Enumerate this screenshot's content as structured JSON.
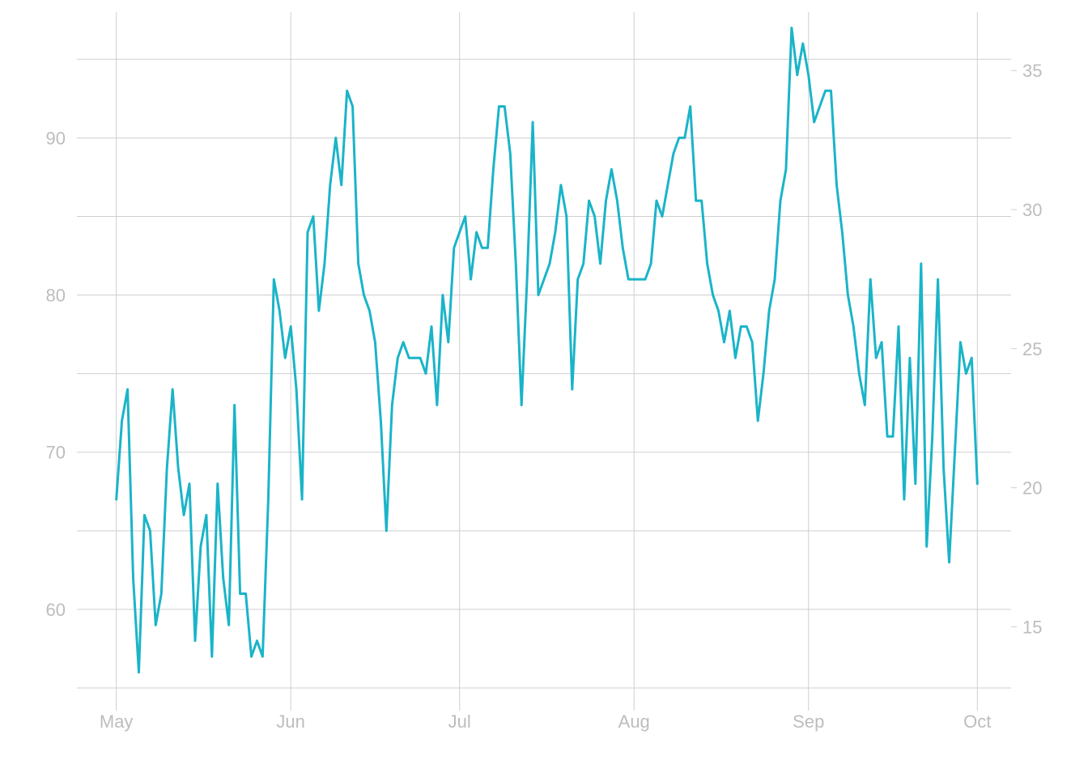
{
  "chart_data": {
    "type": "line",
    "title": "",
    "xlabel": "",
    "ylabel": "",
    "y2label": "",
    "x_ticks": [
      "May",
      "Jun",
      "Jul",
      "Aug",
      "Sep",
      "Oct"
    ],
    "x_tick_dates": [
      "2023-05-01",
      "2023-06-01",
      "2023-07-01",
      "2023-08-01",
      "2023-09-01",
      "2023-10-01"
    ],
    "xlim": [
      "2023-04-24",
      "2023-10-07"
    ],
    "ylim_left": [
      55,
      98
    ],
    "y_ticks_left": [
      60,
      70,
      80,
      90
    ],
    "ylim_right": [
      12.8,
      37.1
    ],
    "y_ticks_right": [
      15,
      20,
      25,
      30,
      35
    ],
    "grid": true,
    "line_color": "#1ab4c8",
    "series": [
      {
        "axis": "left",
        "x_start": "2023-05-01",
        "step": "1 day",
        "values": [
          67,
          72,
          74,
          62,
          56,
          66,
          65,
          59,
          61,
          69,
          74,
          69,
          66,
          68,
          58,
          64,
          66,
          57,
          68,
          62,
          59,
          73,
          61,
          61,
          57,
          58,
          57,
          67,
          81,
          79,
          76,
          78,
          74,
          67,
          84,
          85,
          79,
          82,
          87,
          90,
          87,
          93,
          92,
          82,
          80,
          79,
          77,
          72,
          65,
          73,
          76,
          77,
          76,
          76,
          76,
          75,
          78,
          73,
          80,
          77,
          83,
          84,
          85,
          81,
          84,
          83,
          83,
          88,
          92,
          92,
          89,
          82,
          73,
          81,
          91,
          80,
          81,
          82,
          84,
          87,
          85,
          74,
          81,
          82,
          86,
          85,
          82,
          86,
          88,
          86,
          83,
          81,
          81,
          81,
          81,
          82,
          86,
          85,
          87,
          89,
          90,
          90,
          92,
          86,
          86,
          82,
          80,
          79,
          77,
          79,
          76,
          78,
          78,
          77,
          72,
          75,
          79,
          81,
          86,
          88,
          97,
          94,
          96,
          94,
          91,
          92,
          93,
          93,
          87,
          84,
          80,
          78,
          75,
          73,
          81,
          76,
          77,
          71,
          71,
          78,
          67,
          76,
          68,
          82,
          64,
          71,
          81,
          69,
          63,
          70,
          77,
          75,
          76,
          68
        ]
      }
    ]
  }
}
